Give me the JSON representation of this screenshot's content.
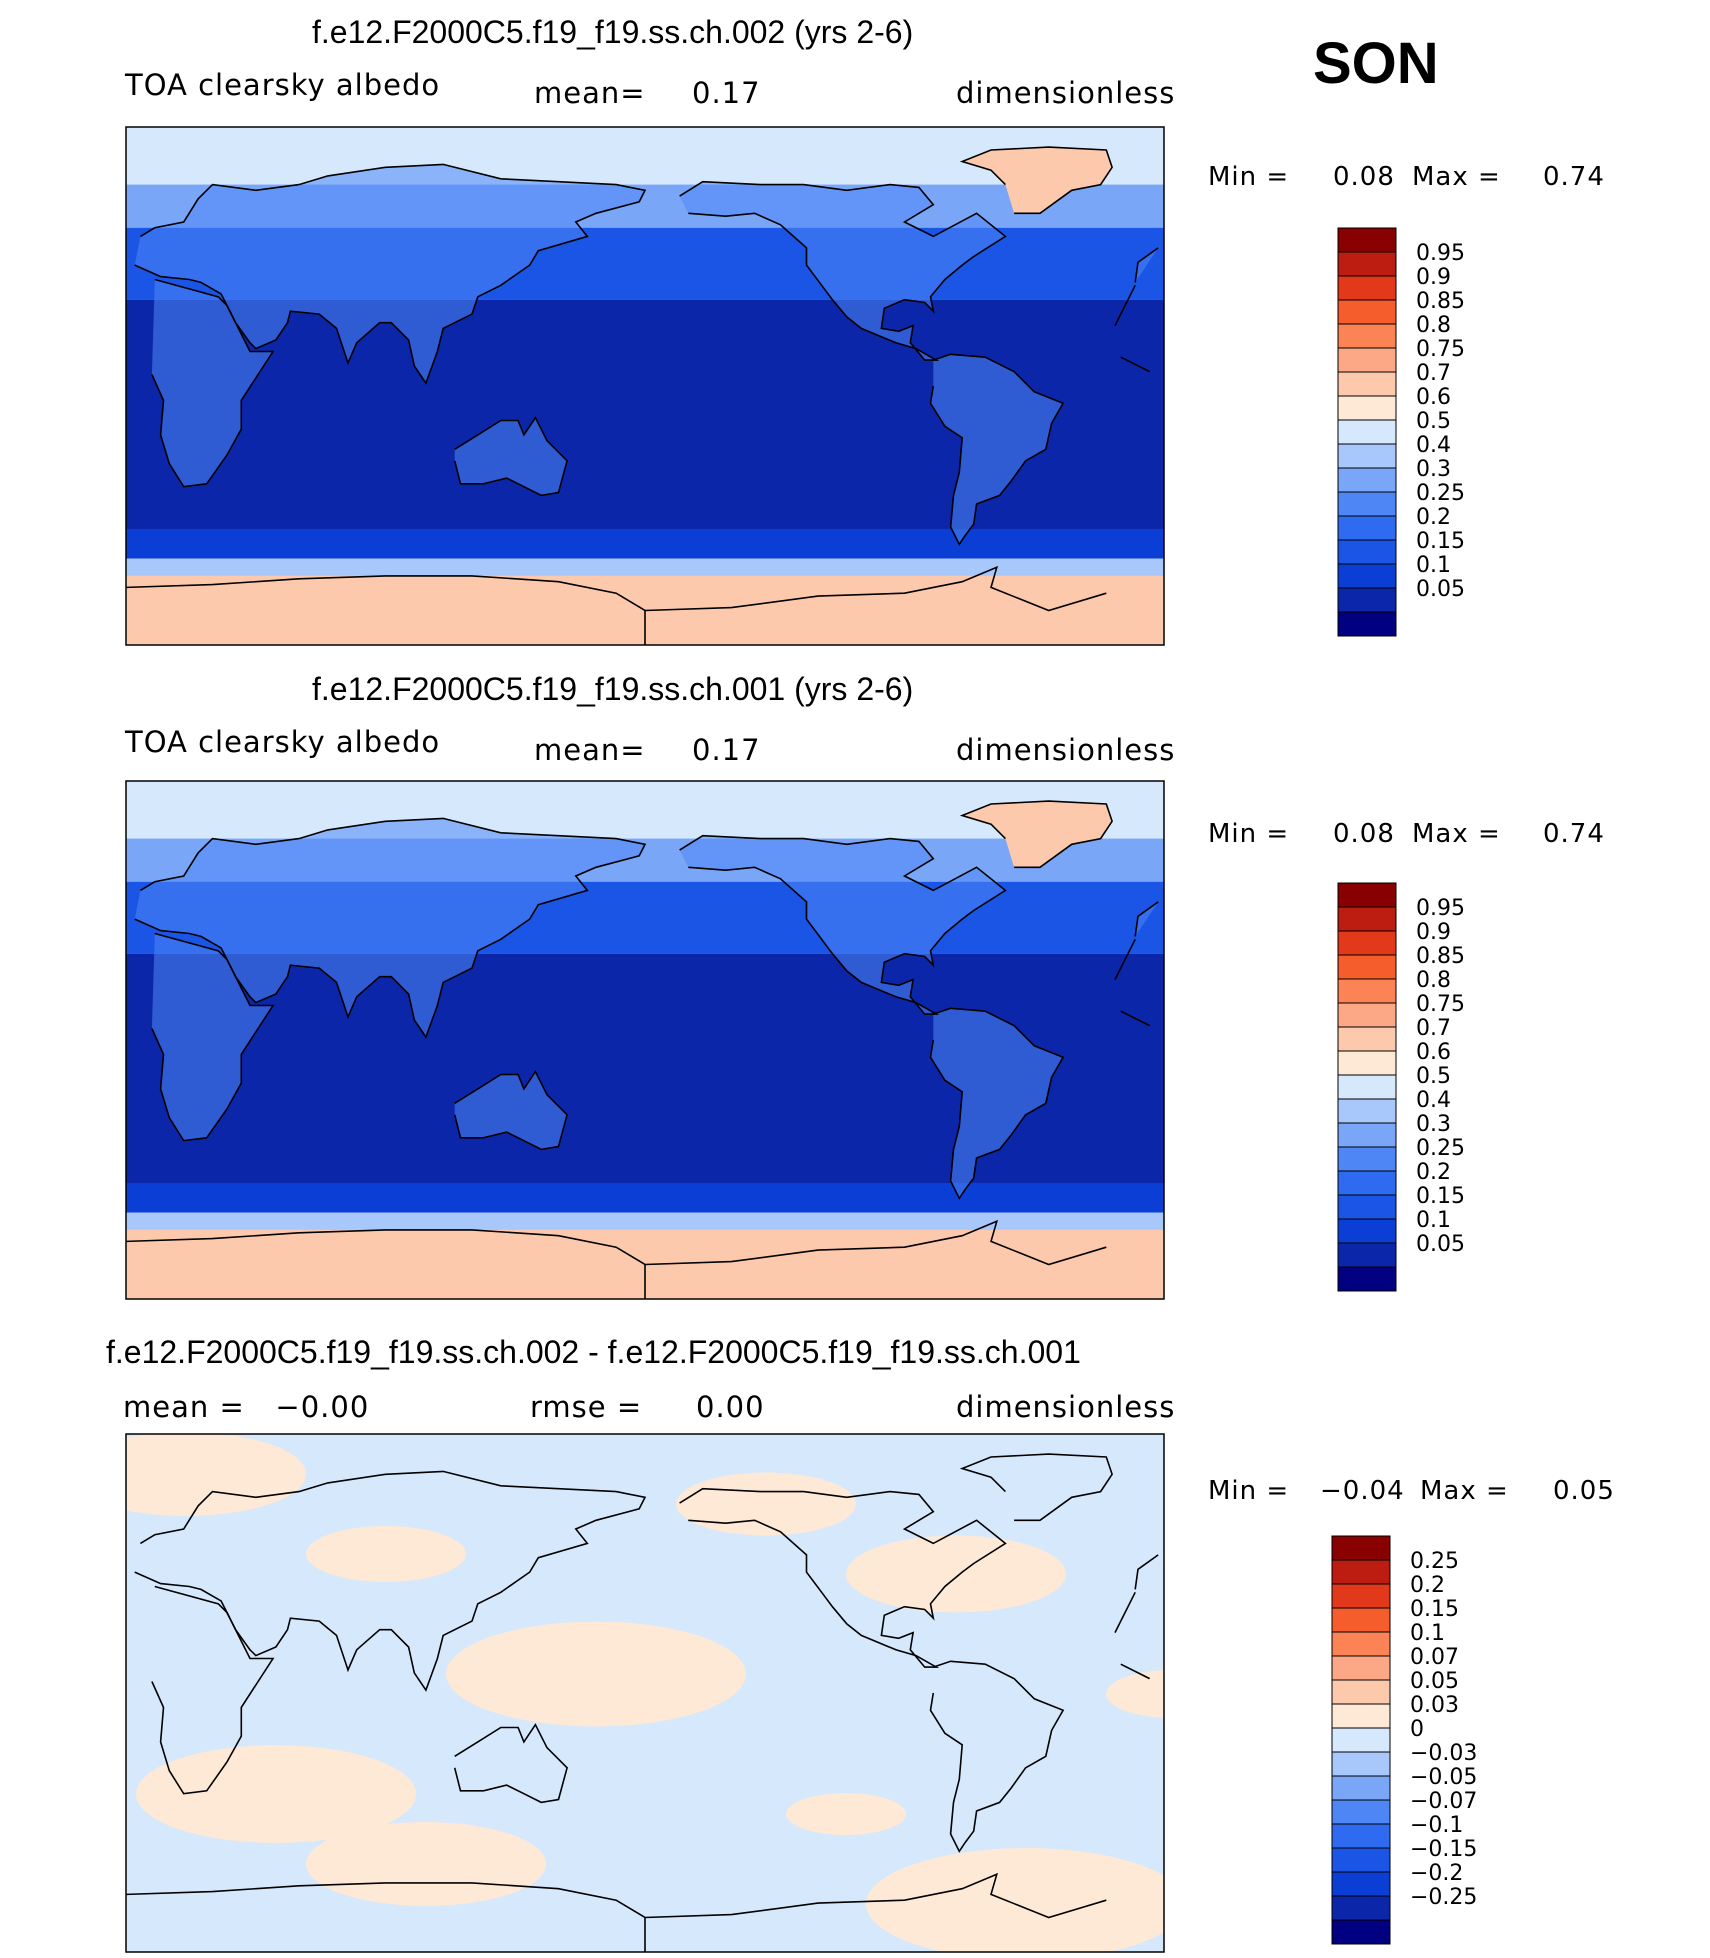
{
  "season": "SON",
  "palettes": {
    "abs": [
      "#000080",
      "#0b26a8",
      "#0a3ed4",
      "#1a55e6",
      "#2f6bf0",
      "#4f86f5",
      "#7aa6f8",
      "#a8c8fb",
      "#d6e8fc",
      "#fde9d6",
      "#fdc9ad",
      "#fca886",
      "#fb8355",
      "#f65d2c",
      "#e2391a",
      "#bd1d10",
      "#880000"
    ],
    "diff": [
      "#000080",
      "#0b26a8",
      "#0a3ed4",
      "#1a55e6",
      "#2f6bf0",
      "#4f86f5",
      "#7aa6f8",
      "#a8c8fb",
      "#d6e8fc",
      "#fde9d6",
      "#fdc9ad",
      "#fca886",
      "#fb8355",
      "#f65d2c",
      "#e2391a",
      "#bd1d10",
      "#880000"
    ]
  },
  "panels": [
    {
      "title": "f.e12.F2000C5.f19_f19.ss.ch.002 (yrs 2-6)",
      "left_text": "TOA clearsky albedo",
      "mid_label": "mean=",
      "mid_value": "0.17",
      "units": "dimensionless",
      "min_label": "Min =",
      "min_value": "0.08",
      "max_label": "Max =",
      "max_value": "0.74",
      "colorbar_labels": [
        "0.95",
        "0.9",
        "0.85",
        "0.8",
        "0.75",
        "0.7",
        "0.6",
        "0.5",
        "0.4",
        "0.3",
        "0.25",
        "0.2",
        "0.15",
        "0.1",
        "0.05"
      ]
    },
    {
      "title": "f.e12.F2000C5.f19_f19.ss.ch.001 (yrs 2-6)",
      "left_text": "TOA clearsky albedo",
      "mid_label": "mean=",
      "mid_value": "0.17",
      "units": "dimensionless",
      "min_label": "Min =",
      "min_value": "0.08",
      "max_label": "Max =",
      "max_value": "0.74",
      "colorbar_labels": [
        "0.95",
        "0.9",
        "0.85",
        "0.8",
        "0.75",
        "0.7",
        "0.6",
        "0.5",
        "0.4",
        "0.3",
        "0.25",
        "0.2",
        "0.15",
        "0.1",
        "0.05"
      ]
    },
    {
      "title": "f.e12.F2000C5.f19_f19.ss.ch.002 - f.e12.F2000C5.f19_f19.ss.ch.001",
      "left_text": "mean =   −0.00",
      "mid_label": "rmse =",
      "mid_value": "0.00",
      "units": "dimensionless",
      "min_label": "Min =",
      "min_value": "−0.04",
      "max_label": "Max =",
      "max_value": "0.05",
      "colorbar_labels": [
        "0.25",
        "0.2",
        "0.15",
        "0.1",
        "0.07",
        "0.05",
        "0.03",
        "0",
        "−0.03",
        "−0.05",
        "−0.07",
        "−0.1",
        "−0.15",
        "−0.2",
        "−0.25"
      ]
    }
  ],
  "chart_data": [
    {
      "type": "heatmap",
      "title": "f.e12.F2000C5.f19_f19.ss.ch.002 (yrs 2-6)",
      "variable": "TOA clearsky albedo",
      "units": "dimensionless",
      "mean": 0.17,
      "min": 0.08,
      "max": 0.74,
      "levels": [
        0.05,
        0.1,
        0.15,
        0.2,
        0.25,
        0.3,
        0.4,
        0.5,
        0.6,
        0.7,
        0.75,
        0.8,
        0.85,
        0.9,
        0.95
      ],
      "zonal_bands": [
        {
          "lat": [
            70,
            90
          ],
          "value": 0.55
        },
        {
          "lat": [
            55,
            70
          ],
          "value": 0.32
        },
        {
          "lat": [
            30,
            55
          ],
          "value": 0.17
        },
        {
          "lat": [
            -50,
            30
          ],
          "value": 0.08
        },
        {
          "lat": [
            -60,
            -50
          ],
          "value": 0.13
        },
        {
          "lat": [
            -66,
            -60
          ],
          "value": 0.45
        },
        {
          "lat": [
            -90,
            -66
          ],
          "value": 0.72
        }
      ]
    },
    {
      "type": "heatmap",
      "title": "f.e12.F2000C5.f19_f19.ss.ch.001 (yrs 2-6)",
      "variable": "TOA clearsky albedo",
      "units": "dimensionless",
      "mean": 0.17,
      "min": 0.08,
      "max": 0.74,
      "levels": [
        0.05,
        0.1,
        0.15,
        0.2,
        0.25,
        0.3,
        0.4,
        0.5,
        0.6,
        0.7,
        0.75,
        0.8,
        0.85,
        0.9,
        0.95
      ],
      "zonal_bands": [
        {
          "lat": [
            70,
            90
          ],
          "value": 0.55
        },
        {
          "lat": [
            55,
            70
          ],
          "value": 0.32
        },
        {
          "lat": [
            30,
            55
          ],
          "value": 0.17
        },
        {
          "lat": [
            -50,
            30
          ],
          "value": 0.08
        },
        {
          "lat": [
            -60,
            -50
          ],
          "value": 0.13
        },
        {
          "lat": [
            -66,
            -60
          ],
          "value": 0.45
        },
        {
          "lat": [
            -90,
            -66
          ],
          "value": 0.72
        }
      ]
    },
    {
      "type": "heatmap",
      "title": "f.e12.F2000C5.f19_f19.ss.ch.002 - f.e12.F2000C5.f19_f19.ss.ch.001",
      "units": "dimensionless",
      "mean": -0.0,
      "rmse": 0.0,
      "min": -0.04,
      "max": 0.05,
      "levels": [
        -0.25,
        -0.2,
        -0.15,
        -0.1,
        -0.07,
        -0.05,
        -0.03,
        0,
        0.03,
        0.05,
        0.07,
        0.1,
        0.15,
        0.2,
        0.25
      ],
      "dominant_values": [
        -0.01,
        0.01
      ]
    }
  ]
}
